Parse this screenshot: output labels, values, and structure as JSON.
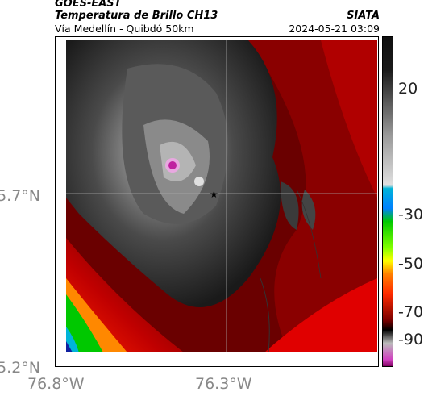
{
  "header": {
    "satellite": "GOES-EAST",
    "product": "Temperatura de Brillo CH13",
    "route": "Vía Medellín - Quibdó 50km",
    "source": "SIATA",
    "timestamp": "2024-05-21 03:09"
  },
  "map": {
    "lat_labels": [
      "5.7°N",
      "5.2°N"
    ],
    "lon_labels": [
      "76.8°W",
      "76.3°W"
    ],
    "marker": "star",
    "grid": true
  },
  "colorbar": {
    "ticks": [
      "20",
      "-30",
      "-50",
      "-70",
      "-90"
    ],
    "colors": {
      "warm_low": "#7a0000",
      "warm_high": "#ff2a00",
      "gray_top": "#1a1a1a",
      "gray_mid": "#9a9a9a",
      "cold_cyan": "#00b4d8",
      "cold_green": "#00c800",
      "cold_yellow": "#ffff00",
      "cold_magenta": "#d040c0"
    }
  }
}
